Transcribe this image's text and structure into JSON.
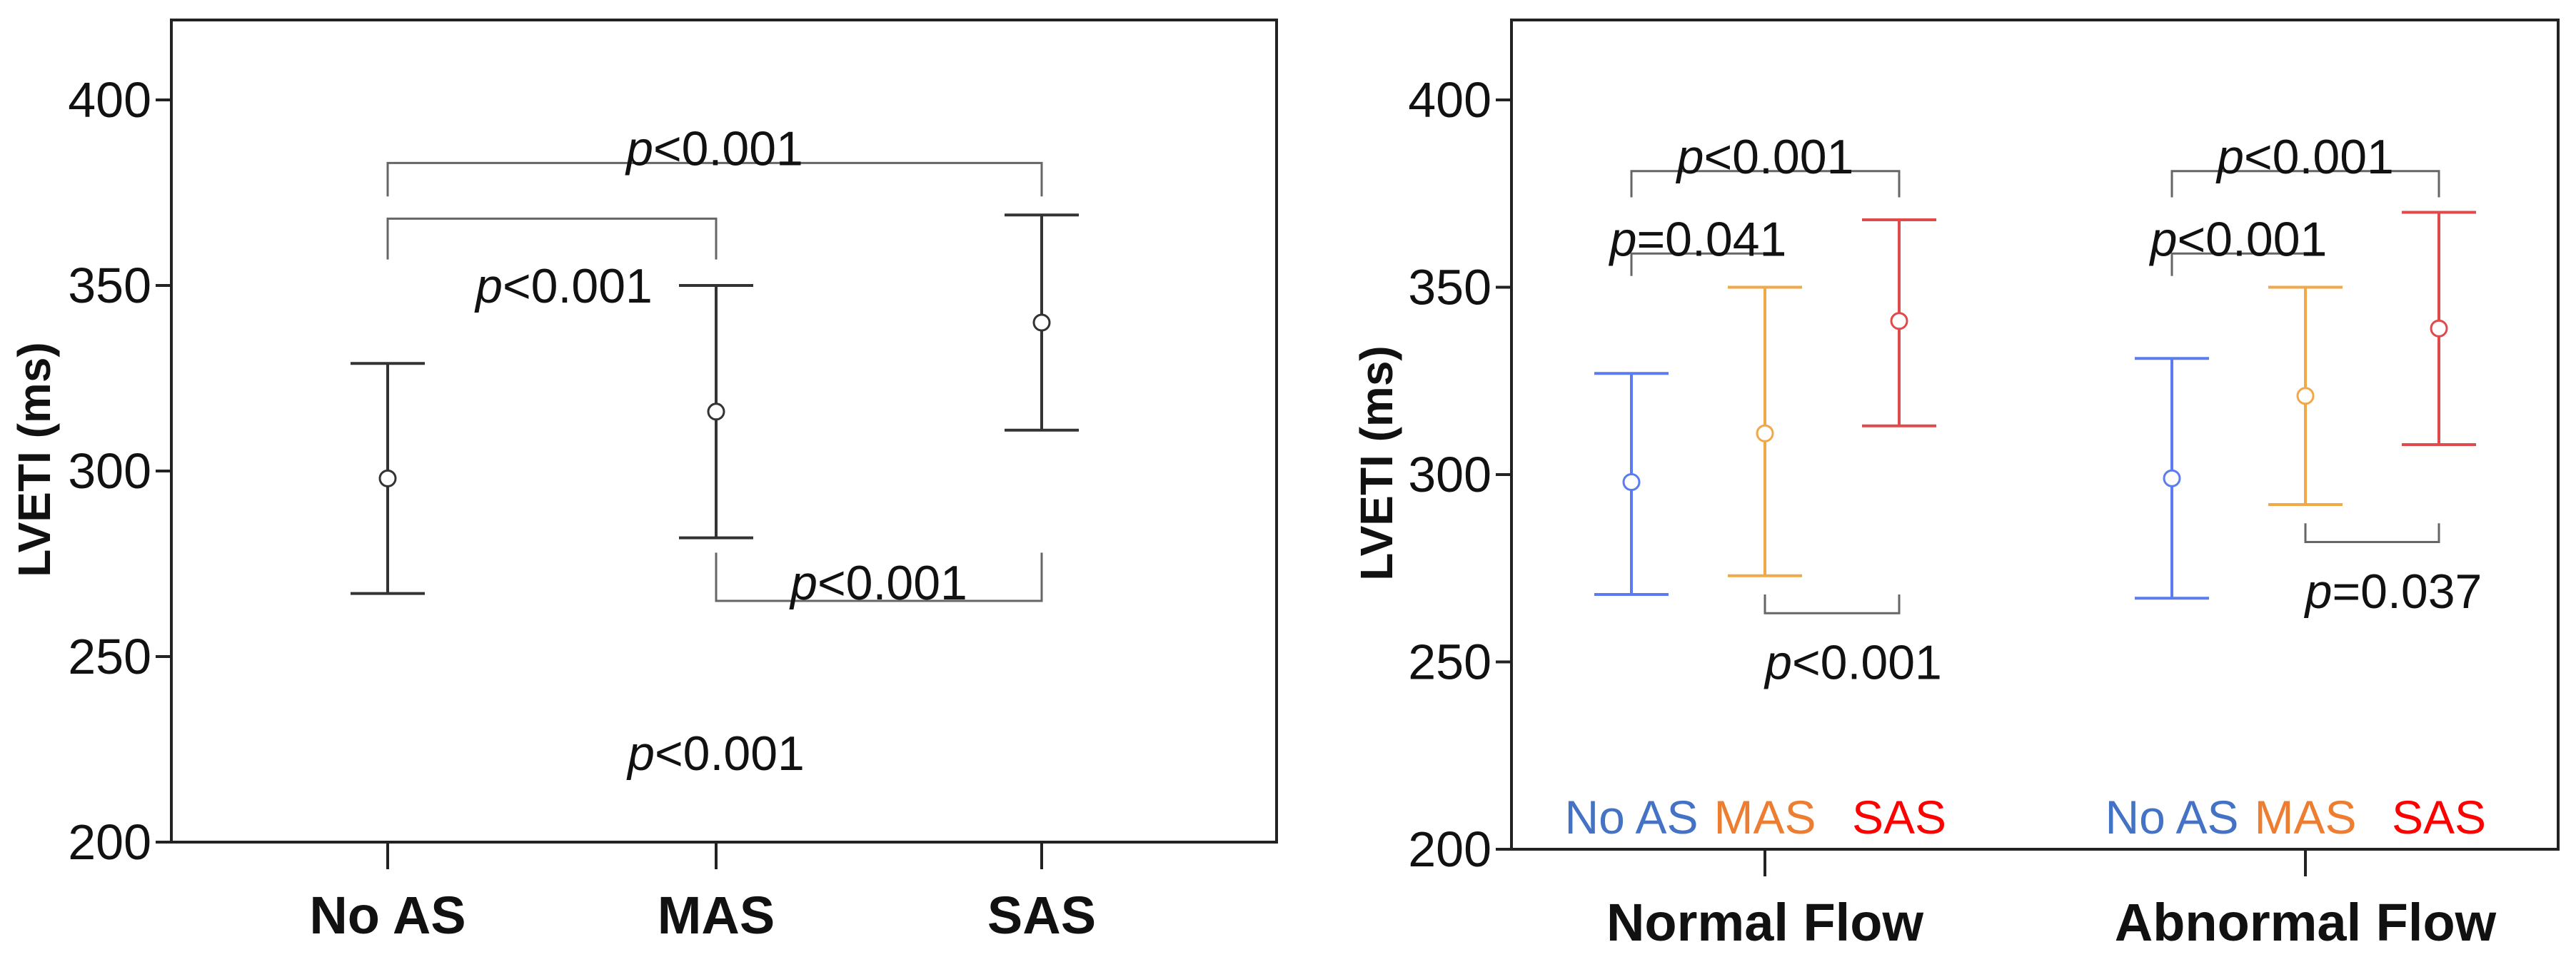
{
  "chart_data": [
    {
      "type": "errorbar",
      "ylabel": "LVETI (ms)",
      "ylim": [
        200,
        420
      ],
      "yticks": [
        200,
        250,
        300,
        350,
        400
      ],
      "categories": [
        "No AS",
        "MAS",
        "SAS"
      ],
      "series": [
        {
          "name": "No AS",
          "color": "#333333",
          "mean": 298,
          "lower": 267,
          "upper": 329
        },
        {
          "name": "MAS",
          "color": "#333333",
          "mean": 316,
          "lower": 282,
          "upper": 350
        },
        {
          "name": "SAS",
          "color": "#333333",
          "mean": 340,
          "lower": 311,
          "upper": 369
        }
      ],
      "comparisons": [
        {
          "from": 0,
          "to": 2,
          "bar": 383,
          "leg_from": 374,
          "leg_to": 374,
          "label": "<0.001",
          "prefix": "p",
          "label_value": 387
        },
        {
          "from": 0,
          "to": 1,
          "bar": 368,
          "leg_from": 357,
          "leg_to": 357,
          "label": "<0.001",
          "prefix": "p",
          "label_value": 350
        },
        {
          "from": 1,
          "to": 2,
          "bar": 265,
          "leg_from": 278,
          "leg_to": 278,
          "label": "<0.001",
          "prefix": "p",
          "label_value": 270
        }
      ],
      "annotations": [
        {
          "prefix": "p",
          "label": "<0.001",
          "value": 224
        }
      ]
    },
    {
      "type": "errorbar",
      "ylabel": "LVETI (ms)",
      "ylim": [
        200,
        420
      ],
      "yticks": [
        200,
        250,
        300,
        350,
        400
      ],
      "categories": [
        "Normal Flow",
        "Abnormal Flow"
      ],
      "subgroups": [
        {
          "name": "No AS",
          "color": "#4472C4",
          "marker_color": "#5b7cf0"
        },
        {
          "name": "MAS",
          "color": "#ED7D31",
          "marker_color": "#f0a848"
        },
        {
          "name": "SAS",
          "color": "#FF0000",
          "marker_color": "#e04a4a"
        }
      ],
      "series": [
        {
          "group": "Normal Flow",
          "name": "No AS",
          "mean": 298,
          "lower": 268,
          "upper": 327
        },
        {
          "group": "Normal Flow",
          "name": "MAS",
          "mean": 311,
          "lower": 273,
          "upper": 350
        },
        {
          "group": "Normal Flow",
          "name": "SAS",
          "mean": 341,
          "lower": 313,
          "upper": 368
        },
        {
          "group": "Abnormal Flow",
          "name": "No AS",
          "mean": 299,
          "lower": 267,
          "upper": 331
        },
        {
          "group": "Abnormal Flow",
          "name": "MAS",
          "mean": 321,
          "lower": 292,
          "upper": 350
        },
        {
          "group": "Abnormal Flow",
          "name": "SAS",
          "mean": 339,
          "lower": 308,
          "upper": 370
        }
      ],
      "comparisons": [
        {
          "from": 0,
          "to": 2,
          "bar": 381,
          "leg_from": 374,
          "leg_to": 374,
          "label": "<0.001",
          "prefix": "p",
          "label_value": 385
        },
        {
          "from": 0,
          "to": 1,
          "bar": 359,
          "leg_from": 353,
          "leg_to": 359,
          "label": "=0.041",
          "prefix": "p",
          "label_value": 363
        },
        {
          "from": 1,
          "to": 2,
          "bar": 263,
          "leg_from": 268,
          "leg_to": 268,
          "label": "<0.001",
          "prefix": "p",
          "label_value": 250
        },
        {
          "from": 3,
          "to": 5,
          "bar": 381,
          "leg_from": 374,
          "leg_to": 374,
          "label": "<0.001",
          "prefix": "p",
          "label_value": 385
        },
        {
          "from": 3,
          "to": 4,
          "bar": 359,
          "leg_from": 353,
          "leg_to": 359,
          "label": "<0.001",
          "prefix": "p",
          "label_value": 363
        },
        {
          "from": 4,
          "to": 5,
          "bar": 282,
          "leg_from": 287,
          "leg_to": 287,
          "label": "=0.037",
          "prefix": "p",
          "label_value": 269
        }
      ]
    }
  ]
}
